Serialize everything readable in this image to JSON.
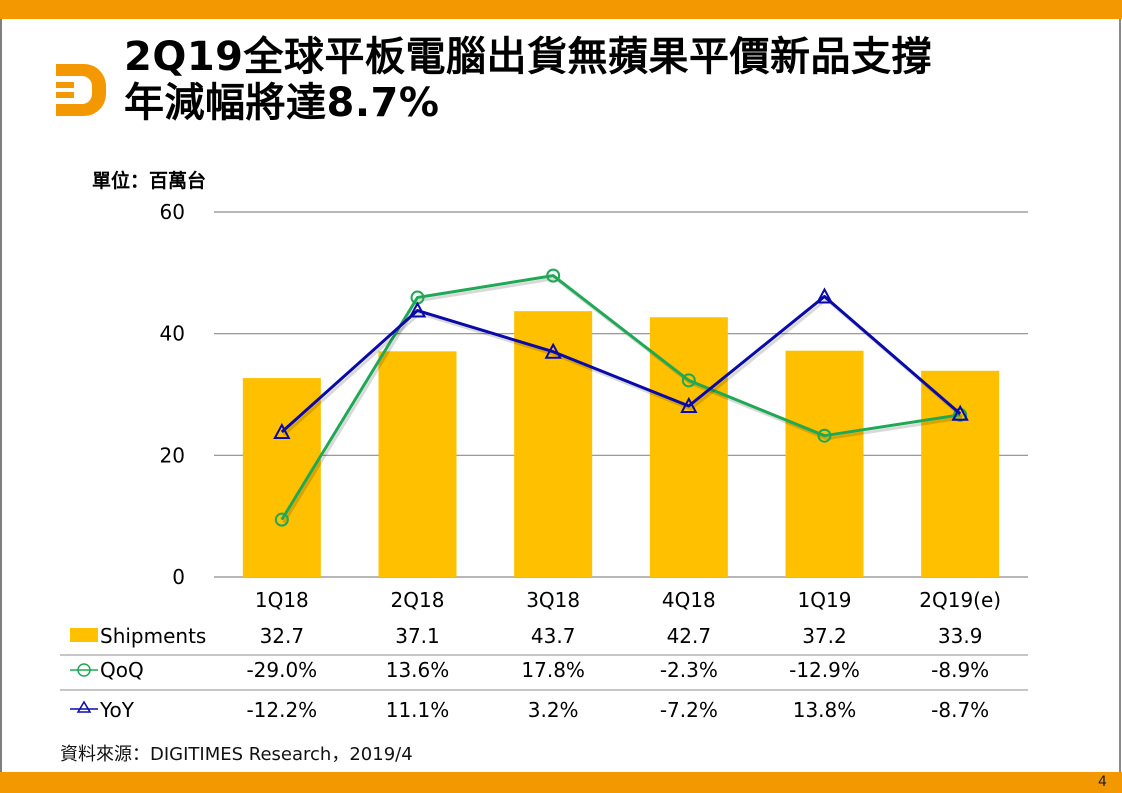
{
  "title": "2Q19全球平板電腦出貨無蘋果平價新品支撐年減幅將達8.7%",
  "unit_label": "單位：百萬台",
  "source": "資料來源：DIGITIMES Research，2019/4",
  "page_number": "4",
  "colors": {
    "accent": "#F39800",
    "bar": "#FFC000",
    "qoq": "#1FA855",
    "yoy": "#0A0AAA",
    "grid": "#8c8c8c"
  },
  "chart_data": {
    "type": "bar",
    "title": "2Q19全球平板電腦出貨無蘋果平價新品支撐年減幅將達8.7%",
    "ylabel": "單位：百萬台",
    "categories": [
      "1Q18",
      "2Q18",
      "3Q18",
      "4Q18",
      "1Q19",
      "2Q19(e)"
    ],
    "ylim": [
      0,
      60
    ],
    "yticks": [
      "0",
      "20",
      "40",
      "60"
    ],
    "y2lim": [
      -40,
      30
    ],
    "y2_visible": false,
    "grid": true,
    "legend": "data-table-below",
    "series": [
      {
        "name": "Shipments",
        "type": "bar",
        "axis": "primary",
        "values": [
          32.7,
          37.1,
          43.7,
          42.7,
          37.2,
          33.9
        ],
        "labels": [
          "32.7",
          "37.1",
          "43.7",
          "42.7",
          "37.2",
          "33.9"
        ]
      },
      {
        "name": "QoQ",
        "type": "line",
        "marker": "circle",
        "axis": "secondary",
        "values": [
          -29.0,
          13.6,
          17.8,
          -2.3,
          -12.9,
          -8.9
        ],
        "labels": [
          "-29.0%",
          "13.6%",
          "17.8%",
          "-2.3%",
          "-12.9%",
          "-8.9%"
        ]
      },
      {
        "name": "YoY",
        "type": "line",
        "marker": "triangle",
        "axis": "secondary",
        "values": [
          -12.2,
          11.1,
          3.2,
          -7.2,
          13.8,
          -8.7
        ],
        "labels": [
          "-12.2%",
          "11.1%",
          "3.2%",
          "-7.2%",
          "13.8%",
          "-8.7%"
        ]
      }
    ]
  }
}
